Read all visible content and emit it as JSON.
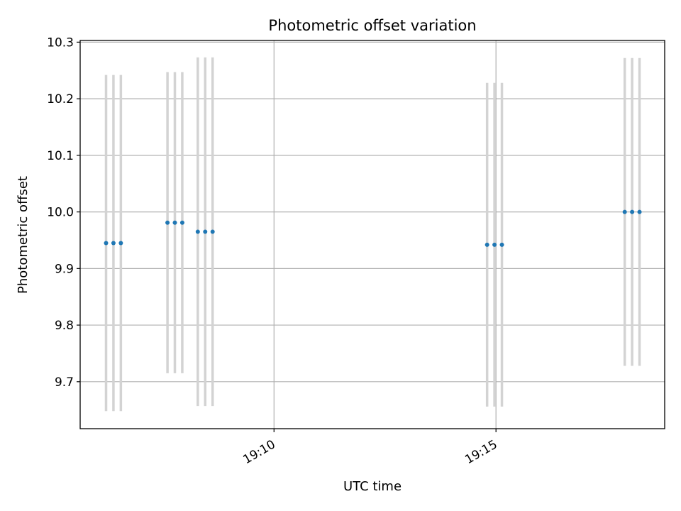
{
  "chart_data": {
    "type": "scatter",
    "title": "Photometric offset variation",
    "xlabel": "UTC time",
    "ylabel": "Photometric offset",
    "x_axis": "time",
    "xlim": [
      "19:05:38",
      "19:18:48"
    ],
    "ylim": [
      9.617,
      10.303
    ],
    "xticks": [
      {
        "value": "19:10:00",
        "label": "19:10"
      },
      {
        "value": "19:15:00",
        "label": "19:15"
      }
    ],
    "yticks": [
      {
        "value": 9.7,
        "label": "9.7"
      },
      {
        "value": 9.8,
        "label": "9.8"
      },
      {
        "value": 9.9,
        "label": "9.9"
      },
      {
        "value": 10.0,
        "label": "10.0"
      },
      {
        "value": 10.1,
        "label": "10.1"
      },
      {
        "value": 10.2,
        "label": "10.2"
      },
      {
        "value": 10.3,
        "label": "10.3"
      }
    ],
    "grid": true,
    "legend": "none",
    "colors": {
      "points": "#1f77b4",
      "error_bars": "#d3d3d3",
      "grid": "#b0b0b0"
    },
    "series": [
      {
        "points": [
          {
            "x": "19:06:13",
            "y": 9.945,
            "y_low": 9.648,
            "y_high": 10.242
          },
          {
            "x": "19:06:23",
            "y": 9.945,
            "y_low": 9.648,
            "y_high": 10.242
          },
          {
            "x": "19:06:33",
            "y": 9.945,
            "y_low": 9.648,
            "y_high": 10.242
          },
          {
            "x": "19:07:36",
            "y": 9.981,
            "y_low": 9.715,
            "y_high": 10.247
          },
          {
            "x": "19:07:46",
            "y": 9.981,
            "y_low": 9.715,
            "y_high": 10.247
          },
          {
            "x": "19:07:56",
            "y": 9.981,
            "y_low": 9.715,
            "y_high": 10.247
          },
          {
            "x": "19:08:17",
            "y": 9.965,
            "y_low": 9.657,
            "y_high": 10.273
          },
          {
            "x": "19:08:27",
            "y": 9.965,
            "y_low": 9.657,
            "y_high": 10.273
          },
          {
            "x": "19:08:37",
            "y": 9.965,
            "y_low": 9.657,
            "y_high": 10.273
          },
          {
            "x": "19:14:48",
            "y": 9.942,
            "y_low": 9.656,
            "y_high": 10.228
          },
          {
            "x": "19:14:58",
            "y": 9.942,
            "y_low": 9.656,
            "y_high": 10.228
          },
          {
            "x": "19:15:08",
            "y": 9.942,
            "y_low": 9.656,
            "y_high": 10.228
          },
          {
            "x": "19:17:54",
            "y": 10.0,
            "y_low": 9.728,
            "y_high": 10.272
          },
          {
            "x": "19:18:04",
            "y": 10.0,
            "y_low": 9.728,
            "y_high": 10.272
          },
          {
            "x": "19:18:14",
            "y": 10.0,
            "y_low": 9.728,
            "y_high": 10.272
          }
        ]
      }
    ]
  }
}
